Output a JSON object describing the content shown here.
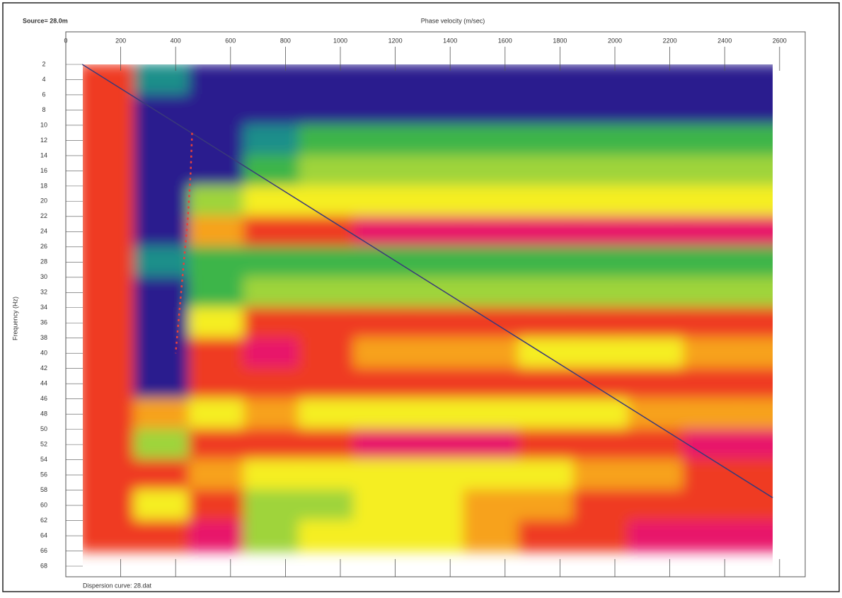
{
  "chart_data": {
    "type": "heatmap",
    "title": "Source= 28.0m",
    "x_label": "Phase velocity (m/sec)",
    "y_label": "Frequency (Hz)",
    "footer": "Dispersion curve: 28.dat",
    "xlim": [
      0,
      2670
    ],
    "ylim": [
      2,
      68
    ],
    "y_inverted": true,
    "xticks": [
      0,
      200,
      400,
      600,
      800,
      1000,
      1200,
      1400,
      1600,
      1800,
      2000,
      2200,
      2400,
      2600
    ],
    "yticks": [
      2,
      4,
      6,
      8,
      10,
      12,
      14,
      16,
      18,
      20,
      22,
      24,
      26,
      28,
      30,
      32,
      34,
      36,
      38,
      40,
      42,
      44,
      46,
      48,
      50,
      52,
      54,
      56,
      58,
      60,
      62,
      64,
      66,
      68
    ],
    "colormap": [
      "#2b1d8e",
      "#1c8f8a",
      "#3cb54a",
      "#9fd43a",
      "#f5ee20",
      "#f7a21b",
      "#ef3b22",
      "#e8196b",
      "#c03bc0"
    ],
    "cell_velocity": [
      150,
      350,
      550,
      750,
      950,
      1150,
      1350,
      1550,
      1750,
      1950,
      2150,
      2350,
      2550
    ],
    "cell_frequency": [
      4,
      8,
      12,
      16,
      20,
      24,
      28,
      32,
      36,
      40,
      44,
      48,
      52,
      56,
      60,
      64
    ],
    "cell_width": 200,
    "cell_height": 4,
    "z": [
      [
        0.7,
        0.1,
        0.05,
        0.05,
        0.05,
        0.05,
        0.05,
        0.05,
        0.05,
        0.05,
        0.05,
        0.05,
        0.05
      ],
      [
        0.7,
        0.05,
        0.05,
        0.05,
        0.05,
        0.05,
        0.05,
        0.05,
        0.05,
        0.05,
        0.05,
        0.05,
        0.05
      ],
      [
        0.75,
        0.05,
        0.05,
        0.1,
        0.25,
        0.3,
        0.3,
        0.3,
        0.3,
        0.3,
        0.3,
        0.3,
        0.3
      ],
      [
        0.75,
        0.05,
        0.05,
        0.2,
        0.35,
        0.35,
        0.35,
        0.35,
        0.35,
        0.35,
        0.35,
        0.35,
        0.35
      ],
      [
        0.7,
        0.05,
        0.35,
        0.45,
        0.45,
        0.5,
        0.5,
        0.5,
        0.5,
        0.5,
        0.5,
        0.55,
        0.55
      ],
      [
        0.7,
        0.05,
        0.6,
        0.8,
        0.8,
        0.85,
        0.9,
        0.85,
        0.85,
        0.85,
        0.85,
        0.85,
        0.85
      ],
      [
        0.7,
        0.15,
        0.3,
        0.3,
        0.3,
        0.3,
        0.3,
        0.3,
        0.3,
        0.3,
        0.3,
        0.3,
        0.3
      ],
      [
        0.75,
        0.05,
        0.3,
        0.35,
        0.4,
        0.4,
        0.4,
        0.4,
        0.4,
        0.4,
        0.4,
        0.4,
        0.4
      ],
      [
        0.75,
        0.05,
        0.55,
        0.7,
        0.75,
        0.75,
        0.75,
        0.75,
        0.75,
        0.75,
        0.75,
        0.75,
        0.75
      ],
      [
        0.75,
        0.05,
        0.75,
        0.9,
        0.7,
        0.65,
        0.6,
        0.6,
        0.55,
        0.55,
        0.55,
        0.6,
        0.65
      ],
      [
        0.75,
        0.05,
        0.7,
        0.8,
        0.8,
        0.8,
        0.8,
        0.8,
        0.8,
        0.8,
        0.8,
        0.8,
        0.8
      ],
      [
        0.75,
        0.6,
        0.5,
        0.6,
        0.5,
        0.5,
        0.5,
        0.5,
        0.5,
        0.55,
        0.6,
        0.6,
        0.6
      ],
      [
        0.75,
        0.35,
        0.75,
        0.8,
        0.8,
        0.85,
        0.85,
        0.85,
        0.8,
        0.8,
        0.8,
        0.85,
        0.85
      ],
      [
        0.75,
        0.7,
        0.65,
        0.55,
        0.5,
        0.5,
        0.5,
        0.5,
        0.55,
        0.6,
        0.65,
        0.7,
        0.75
      ],
      [
        0.75,
        0.5,
        0.75,
        0.35,
        0.35,
        0.5,
        0.55,
        0.6,
        0.65,
        0.7,
        0.75,
        0.8,
        0.8
      ],
      [
        0.75,
        0.75,
        0.9,
        0.35,
        0.45,
        0.5,
        0.5,
        0.6,
        0.7,
        0.8,
        0.85,
        0.9,
        0.85
      ]
    ],
    "diagonal_line": {
      "color": "#3a3a7a",
      "x": [
        60,
        2575
      ],
      "y": [
        2,
        59
      ]
    },
    "dispersion_curve": {
      "color": "#e8403a",
      "x": [
        460,
        455,
        445,
        430,
        415,
        400
      ],
      "y": [
        11,
        16,
        22,
        28,
        34,
        40
      ]
    }
  }
}
